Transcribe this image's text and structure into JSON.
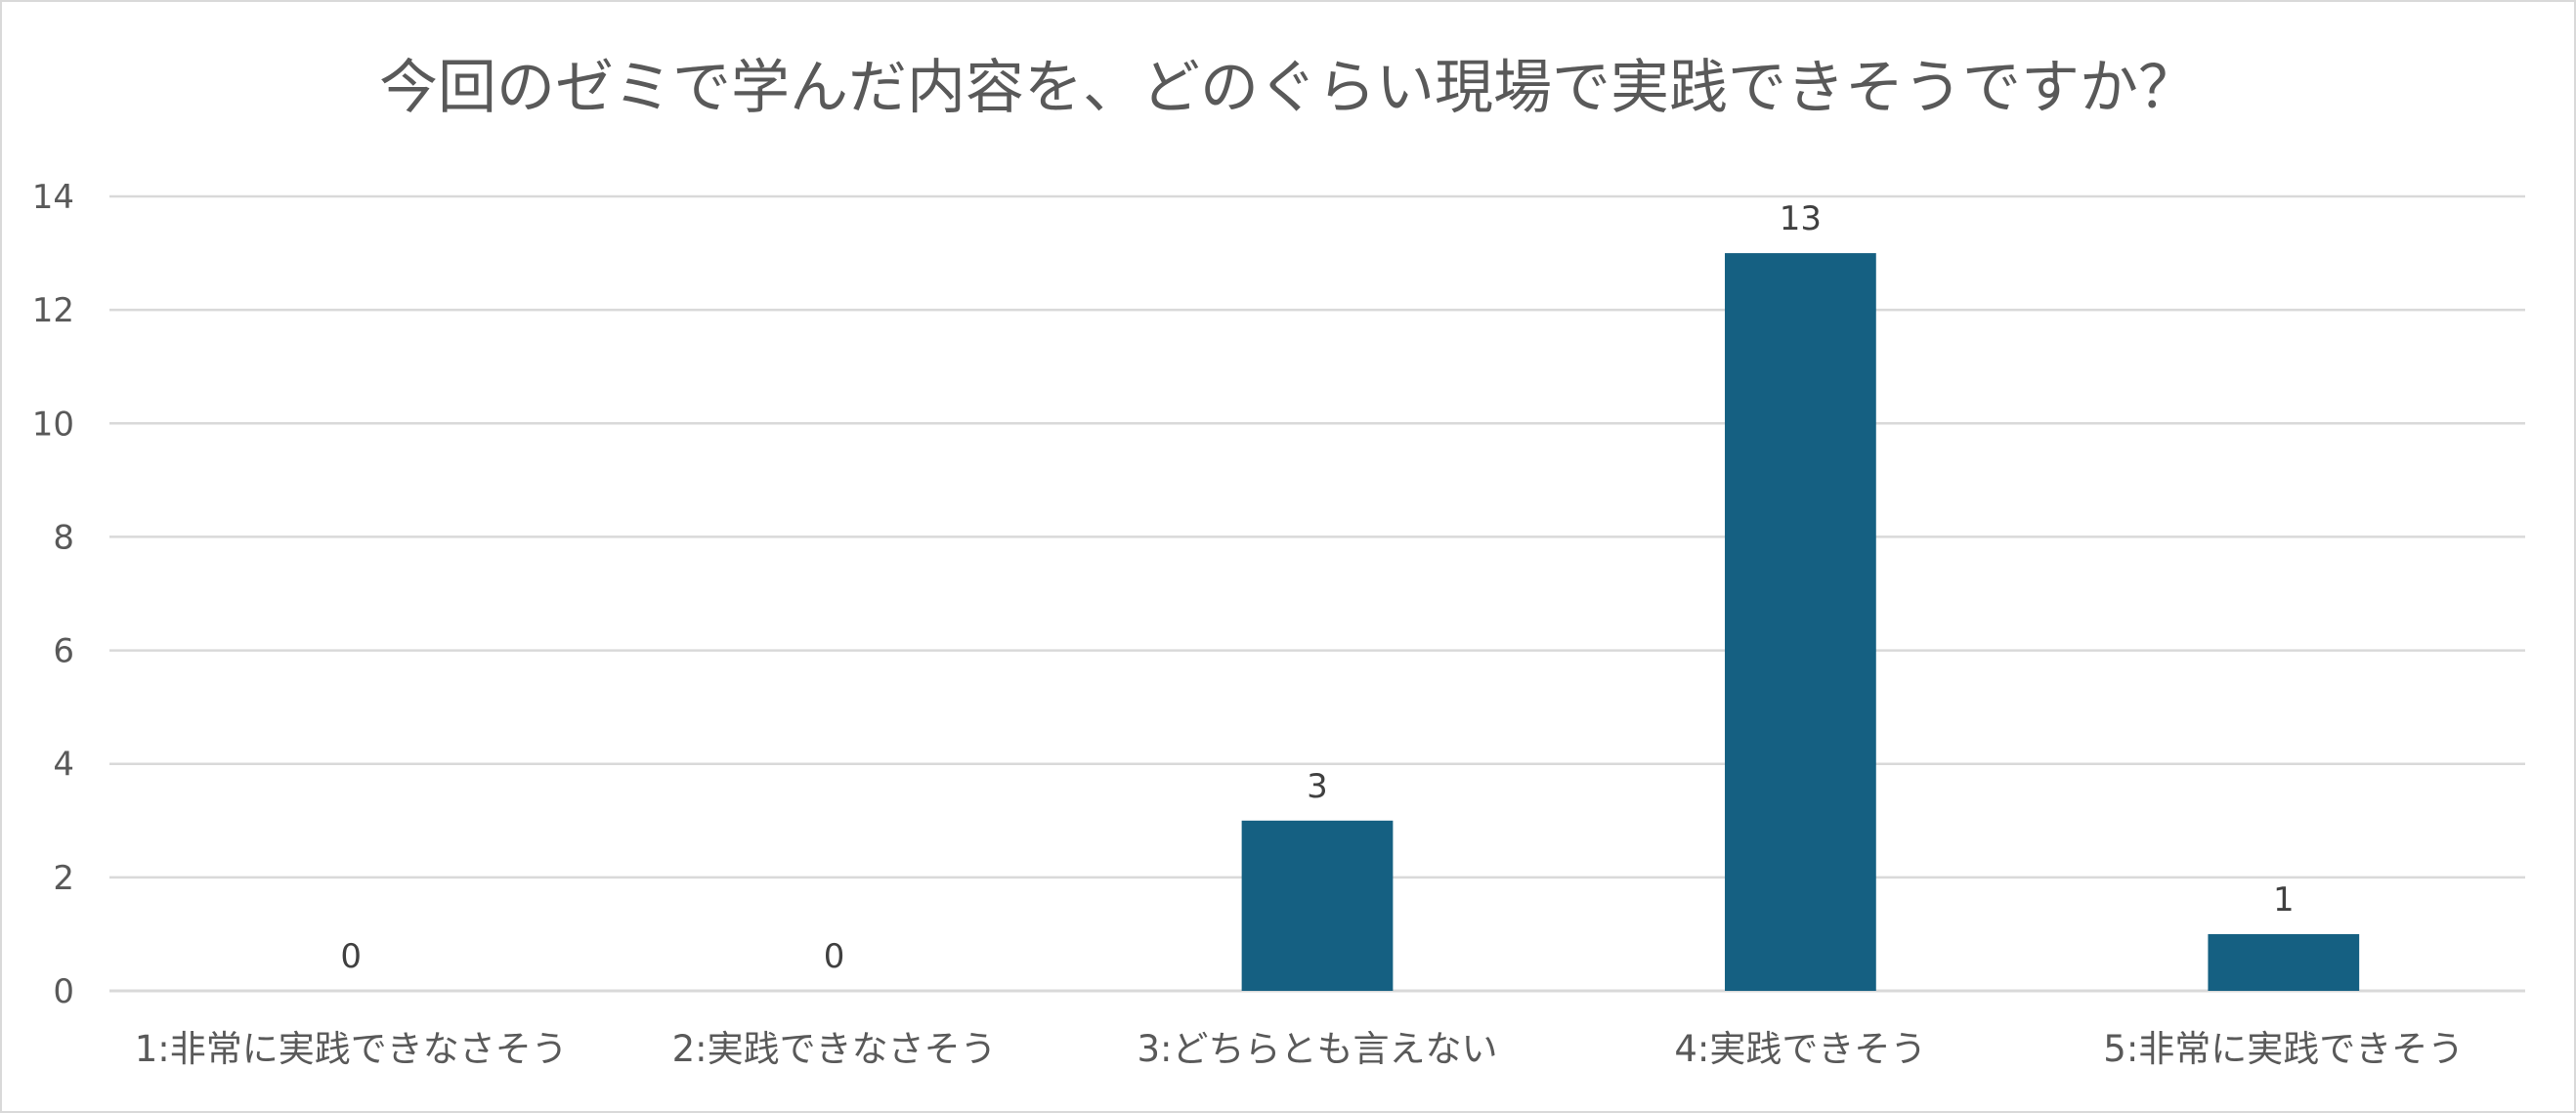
{
  "colors": {
    "bar": "#156082",
    "grid": "#d9d9d9",
    "text": "#595959"
  },
  "chart_data": {
    "type": "bar",
    "title": "今回のゼミで学んだ内容を、どのぐらい現場で実践できそうですか？",
    "categories": [
      "1:非常に実践できなさそう",
      "2:実践できなさそう",
      "3:どちらとも言えない",
      "4:実践できそう",
      "5:非常に実践できそう"
    ],
    "values": [
      0,
      0,
      3,
      13,
      1
    ],
    "data_labels": [
      "0",
      "0",
      "3",
      "13",
      "1"
    ],
    "ylim": [
      0,
      14
    ],
    "yticks": [
      0,
      2,
      4,
      6,
      8,
      10,
      12,
      14
    ],
    "xlabel": "",
    "ylabel": "",
    "grid": true,
    "legend": "none"
  }
}
